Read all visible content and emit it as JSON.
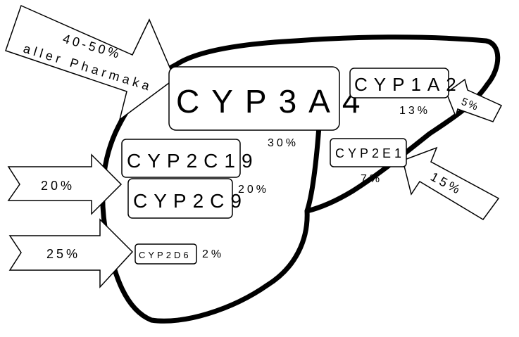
{
  "arrows": {
    "top_left_line1": "40-50%",
    "top_left_line2": "aller Pharmaka",
    "right_top": "5%",
    "right_bottom": "15%",
    "left_middle": "20%",
    "left_bottom": "25%"
  },
  "enzymes": {
    "cyp3a4": {
      "label": "CYP3A4",
      "percent": "30%"
    },
    "cyp1a2": {
      "label": "CYP1A2",
      "percent": "13%"
    },
    "cyp2e1": {
      "label": "CYP2E1",
      "percent": "7%"
    },
    "cyp2c19": {
      "label": "CYP2C19"
    },
    "cyp2c9": {
      "label": "CYP2C9",
      "percent": "20%"
    },
    "cyp2d6": {
      "label": "CYP2D6",
      "percent": "2%"
    }
  },
  "colors": {
    "stroke": "#000000",
    "fill": "#ffffff"
  }
}
